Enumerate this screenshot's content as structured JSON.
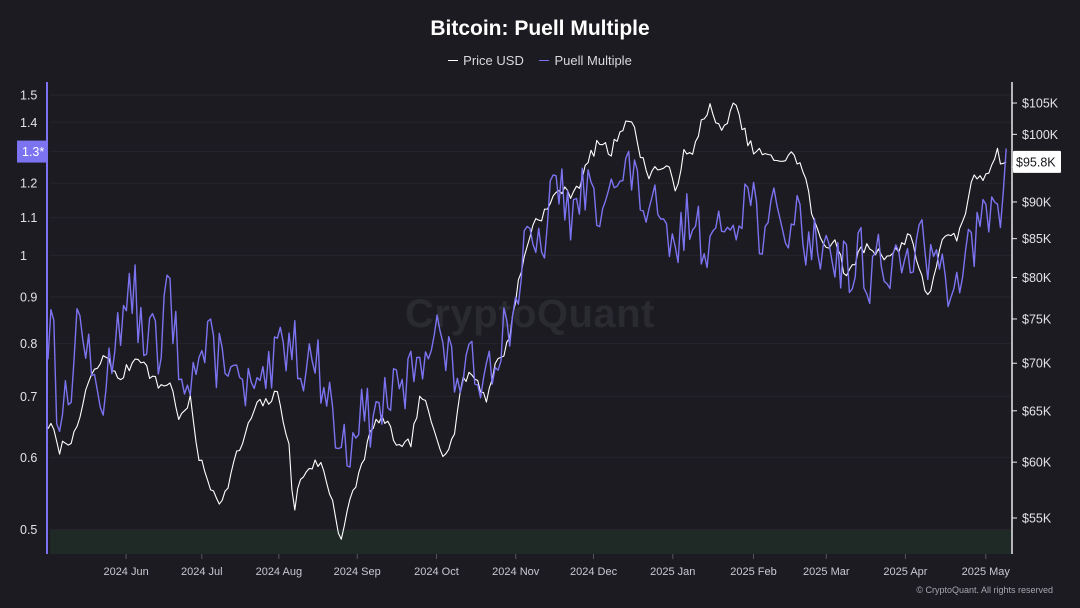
{
  "chart_data": {
    "type": "line",
    "title": "Bitcoin: Puell Multiple",
    "legend_position": "top-center",
    "grid": true,
    "x_categories": [
      "2024 Jun",
      "2024 Jul",
      "2024 Aug",
      "2024 Sep",
      "2024 Oct",
      "2024 Nov",
      "2024 Dec",
      "2025 Jan",
      "2025 Feb",
      "2025 Mar",
      "2025 Apr",
      "2025 May"
    ],
    "left_axis": {
      "scale": "log",
      "ticks": [
        "0.5",
        "0.6",
        "0.7",
        "0.8",
        "0.9",
        "1",
        "1.1",
        "1.2",
        "1.3",
        "1.4",
        "1.5"
      ],
      "range": [
        0.47,
        1.55
      ],
      "current_marker": "1.3*"
    },
    "right_axis": {
      "scale": "log",
      "ticks": [
        "$55K",
        "$60K",
        "$65K",
        "$70K",
        "$75K",
        "$80K",
        "$85K",
        "$90K",
        "$95K",
        "$100K",
        "$105K"
      ],
      "range": [
        52000,
        108500
      ],
      "current_marker": "$95.8K"
    },
    "shaded_zone": {
      "axis": "left",
      "from": 0.47,
      "to": 0.5,
      "color": "#1f2a26"
    },
    "series": [
      {
        "name": "Price USD",
        "axis": "right",
        "color": "#ffffff",
        "anchors": [
          [
            0.0,
            63500
          ],
          [
            0.0065,
            63000
          ],
          [
            0.0099,
            61000
          ],
          [
            0.0185,
            62000
          ],
          [
            0.0293,
            62500
          ],
          [
            0.0401,
            67500
          ],
          [
            0.0509,
            69500
          ],
          [
            0.0616,
            71000
          ],
          [
            0.0724,
            68000
          ],
          [
            0.0832,
            69500
          ],
          [
            0.094,
            71000
          ],
          [
            0.1047,
            69000
          ],
          [
            0.1155,
            67500
          ],
          [
            0.1263,
            68000
          ],
          [
            0.1371,
            64000
          ],
          [
            0.1478,
            66000
          ],
          [
            0.1565,
            60500
          ],
          [
            0.1672,
            58000
          ],
          [
            0.1813,
            56300
          ],
          [
            0.1953,
            60500
          ],
          [
            0.2028,
            62000
          ],
          [
            0.2157,
            65500
          ],
          [
            0.2265,
            65800
          ],
          [
            0.2394,
            66800
          ],
          [
            0.251,
            61000
          ],
          [
            0.2546,
            55000
          ],
          [
            0.2589,
            57500
          ],
          [
            0.2694,
            59500
          ],
          [
            0.2826,
            60000
          ],
          [
            0.2955,
            56500
          ],
          [
            0.3003,
            54500
          ],
          [
            0.3042,
            53200
          ],
          [
            0.3125,
            56000
          ],
          [
            0.3233,
            59000
          ],
          [
            0.3341,
            62500
          ],
          [
            0.3448,
            64500
          ],
          [
            0.3556,
            63000
          ],
          [
            0.3664,
            61000
          ],
          [
            0.3771,
            62000
          ],
          [
            0.3879,
            66800
          ],
          [
            0.3987,
            63500
          ],
          [
            0.4095,
            61000
          ],
          [
            0.4203,
            62000
          ],
          [
            0.4289,
            67500
          ],
          [
            0.4375,
            69000
          ],
          [
            0.4472,
            68000
          ],
          [
            0.4548,
            66000
          ],
          [
            0.4634,
            69500
          ],
          [
            0.4774,
            72000
          ],
          [
            0.4871,
            78500
          ],
          [
            0.4914,
            80800
          ],
          [
            0.5032,
            87000
          ],
          [
            0.5194,
            89000
          ],
          [
            0.5302,
            92000
          ],
          [
            0.5409,
            91000
          ],
          [
            0.5539,
            93000
          ],
          [
            0.5625,
            96500
          ],
          [
            0.5733,
            99000
          ],
          [
            0.5841,
            97000
          ],
          [
            0.5948,
            101000
          ],
          [
            0.6034,
            102700
          ],
          [
            0.6088,
            100500
          ],
          [
            0.6175,
            96000
          ],
          [
            0.6228,
            94000
          ],
          [
            0.6336,
            95000
          ],
          [
            0.6444,
            94500
          ],
          [
            0.6519,
            92000
          ],
          [
            0.6605,
            97000
          ],
          [
            0.6692,
            96500
          ],
          [
            0.6778,
            101800
          ],
          [
            0.6864,
            104500
          ],
          [
            0.6994,
            100000
          ],
          [
            0.7102,
            104600
          ],
          [
            0.7155,
            103700
          ],
          [
            0.7209,
            101000
          ],
          [
            0.7317,
            97500
          ],
          [
            0.7425,
            97000
          ],
          [
            0.7532,
            96000
          ],
          [
            0.7575,
            96500
          ],
          [
            0.764,
            96000
          ],
          [
            0.7748,
            97000
          ],
          [
            0.7856,
            94000
          ],
          [
            0.7964,
            86500
          ],
          [
            0.8071,
            84000
          ],
          [
            0.8179,
            85000
          ],
          [
            0.8244,
            82000
          ],
          [
            0.8297,
            79500
          ],
          [
            0.8403,
            83000
          ],
          [
            0.8513,
            84000
          ],
          [
            0.8621,
            83200
          ],
          [
            0.8728,
            82800
          ],
          [
            0.8836,
            83500
          ],
          [
            0.8944,
            86000
          ],
          [
            0.9009,
            83000
          ],
          [
            0.9084,
            80000
          ],
          [
            0.9116,
            76800
          ],
          [
            0.9149,
            77800
          ],
          [
            0.9213,
            81000
          ],
          [
            0.9267,
            84500
          ],
          [
            0.9353,
            85000
          ],
          [
            0.9429,
            85000
          ],
          [
            0.9515,
            87500
          ],
          [
            0.9569,
            92000
          ],
          [
            0.9655,
            94000
          ],
          [
            0.9709,
            93500
          ],
          [
            0.9795,
            95500
          ],
          [
            0.9849,
            97300
          ],
          [
            0.9903,
            96000
          ],
          [
            0.995,
            95800
          ]
        ],
        "note_current": "95.8K"
      },
      {
        "name": "Puell Multiple",
        "axis": "left",
        "color": "#7b73f0",
        "anchors": [
          [
            0.0,
            0.8
          ],
          [
            0.0043,
            0.91
          ],
          [
            0.0086,
            0.69
          ],
          [
            0.0215,
            0.68
          ],
          [
            0.0302,
            0.85
          ],
          [
            0.0366,
            0.83
          ],
          [
            0.0452,
            0.73
          ],
          [
            0.0506,
            0.71
          ],
          [
            0.0592,
            0.7
          ],
          [
            0.0657,
            0.78
          ],
          [
            0.0732,
            0.87
          ],
          [
            0.0797,
            0.84
          ],
          [
            0.0862,
            0.91
          ],
          [
            0.0905,
            0.91
          ],
          [
            0.0948,
            0.84
          ],
          [
            0.1002,
            0.8
          ],
          [
            0.1045,
            0.84
          ],
          [
            0.1099,
            0.83
          ],
          [
            0.1131,
            0.78
          ],
          [
            0.1152,
            0.7
          ],
          [
            0.1228,
            0.94
          ],
          [
            0.1303,
            0.85
          ],
          [
            0.1357,
            0.77
          ],
          [
            0.1411,
            0.75
          ],
          [
            0.1443,
            0.76
          ],
          [
            0.1488,
            0.74
          ],
          [
            0.1542,
            0.76
          ],
          [
            0.1627,
            0.78
          ],
          [
            0.1681,
            0.8
          ],
          [
            0.1734,
            0.77
          ],
          [
            0.1853,
            0.79
          ],
          [
            0.1939,
            0.73
          ],
          [
            0.2015,
            0.7
          ],
          [
            0.2112,
            0.72
          ],
          [
            0.2198,
            0.68
          ],
          [
            0.2263,
            0.74
          ],
          [
            0.2317,
            0.72
          ],
          [
            0.2392,
            0.8
          ],
          [
            0.2468,
            0.8
          ],
          [
            0.2542,
            0.82
          ],
          [
            0.2596,
            0.78
          ],
          [
            0.265,
            0.76
          ],
          [
            0.2757,
            0.77
          ],
          [
            0.2844,
            0.74
          ],
          [
            0.2919,
            0.7
          ],
          [
            0.3005,
            0.63
          ],
          [
            0.3064,
            0.61
          ],
          [
            0.3149,
            0.63
          ],
          [
            0.3206,
            0.67
          ],
          [
            0.3284,
            0.67
          ],
          [
            0.337,
            0.66
          ],
          [
            0.3457,
            0.68
          ],
          [
            0.3543,
            0.71
          ],
          [
            0.3618,
            0.7
          ],
          [
            0.3726,
            0.72
          ],
          [
            0.3834,
            0.78
          ],
          [
            0.3942,
            0.8
          ],
          [
            0.4027,
            0.83
          ],
          [
            0.4114,
            0.79
          ],
          [
            0.4211,
            0.74
          ],
          [
            0.4308,
            0.74
          ],
          [
            0.4405,
            0.75
          ],
          [
            0.4502,
            0.75
          ],
          [
            0.4599,
            0.77
          ],
          [
            0.4696,
            0.81
          ],
          [
            0.4793,
            0.85
          ],
          [
            0.4847,
            0.87
          ],
          [
            0.4928,
            1.0
          ],
          [
            0.5,
            1.02
          ],
          [
            0.5108,
            1.0
          ],
          [
            0.5191,
            1.1
          ],
          [
            0.5259,
            1.18
          ],
          [
            0.533,
            1.2
          ],
          [
            0.5378,
            1.14
          ],
          [
            0.5464,
            1.09
          ],
          [
            0.5528,
            1.16
          ],
          [
            0.5603,
            1.19
          ],
          [
            0.5679,
            1.12
          ],
          [
            0.5733,
            1.13
          ],
          [
            0.5808,
            1.27
          ],
          [
            0.5905,
            1.16
          ],
          [
            0.5991,
            1.23
          ],
          [
            0.6056,
            1.23
          ],
          [
            0.6142,
            1.18
          ],
          [
            0.6207,
            1.12
          ],
          [
            0.6293,
            1.12
          ],
          [
            0.6379,
            1.05
          ],
          [
            0.6444,
            1.0
          ],
          [
            0.6519,
            1.03
          ],
          [
            0.6595,
            1.05
          ],
          [
            0.667,
            1.13
          ],
          [
            0.6746,
            1.06
          ],
          [
            0.6832,
            1.05
          ],
          [
            0.6928,
            1.02
          ],
          [
            0.7037,
            1.09
          ],
          [
            0.7155,
            1.12
          ],
          [
            0.7252,
            1.17
          ],
          [
            0.7328,
            1.15
          ],
          [
            0.7414,
            1.05
          ],
          [
            0.7468,
            1.05
          ],
          [
            0.7543,
            1.11
          ],
          [
            0.7619,
            1.08
          ],
          [
            0.7694,
            1.07
          ],
          [
            0.777,
            1.11
          ],
          [
            0.7878,
            1.04
          ],
          [
            0.7985,
            1.02
          ],
          [
            0.8093,
            1.05
          ],
          [
            0.819,
            0.99
          ],
          [
            0.8276,
            1.0
          ],
          [
            0.8362,
            0.93
          ],
          [
            0.8427,
            1.04
          ],
          [
            0.8491,
            0.94
          ],
          [
            0.8578,
            0.97
          ],
          [
            0.8642,
            1.03
          ],
          [
            0.8718,
            0.94
          ],
          [
            0.8815,
            0.97
          ],
          [
            0.8869,
            0.95
          ],
          [
            0.8944,
            0.99
          ],
          [
            0.9019,
            1.06
          ],
          [
            0.9073,
            1.02
          ],
          [
            0.9149,
            0.97
          ],
          [
            0.9192,
            0.96
          ],
          [
            0.9278,
            1.03
          ],
          [
            0.9321,
            0.91
          ],
          [
            0.9375,
            0.96
          ],
          [
            0.9451,
            0.98
          ],
          [
            0.9515,
            0.99
          ],
          [
            0.958,
            1.02
          ],
          [
            0.9634,
            1.03
          ],
          [
            0.9698,
            1.09
          ],
          [
            0.9763,
            1.1
          ],
          [
            0.9838,
            1.12
          ],
          [
            0.9903,
            1.14
          ],
          [
            0.995,
            1.31
          ]
        ],
        "note_current": "1.3*"
      }
    ]
  },
  "footer": {
    "copyright": "© CryptoQuant. All rights reserved",
    "watermark": "CryptoQuant"
  }
}
